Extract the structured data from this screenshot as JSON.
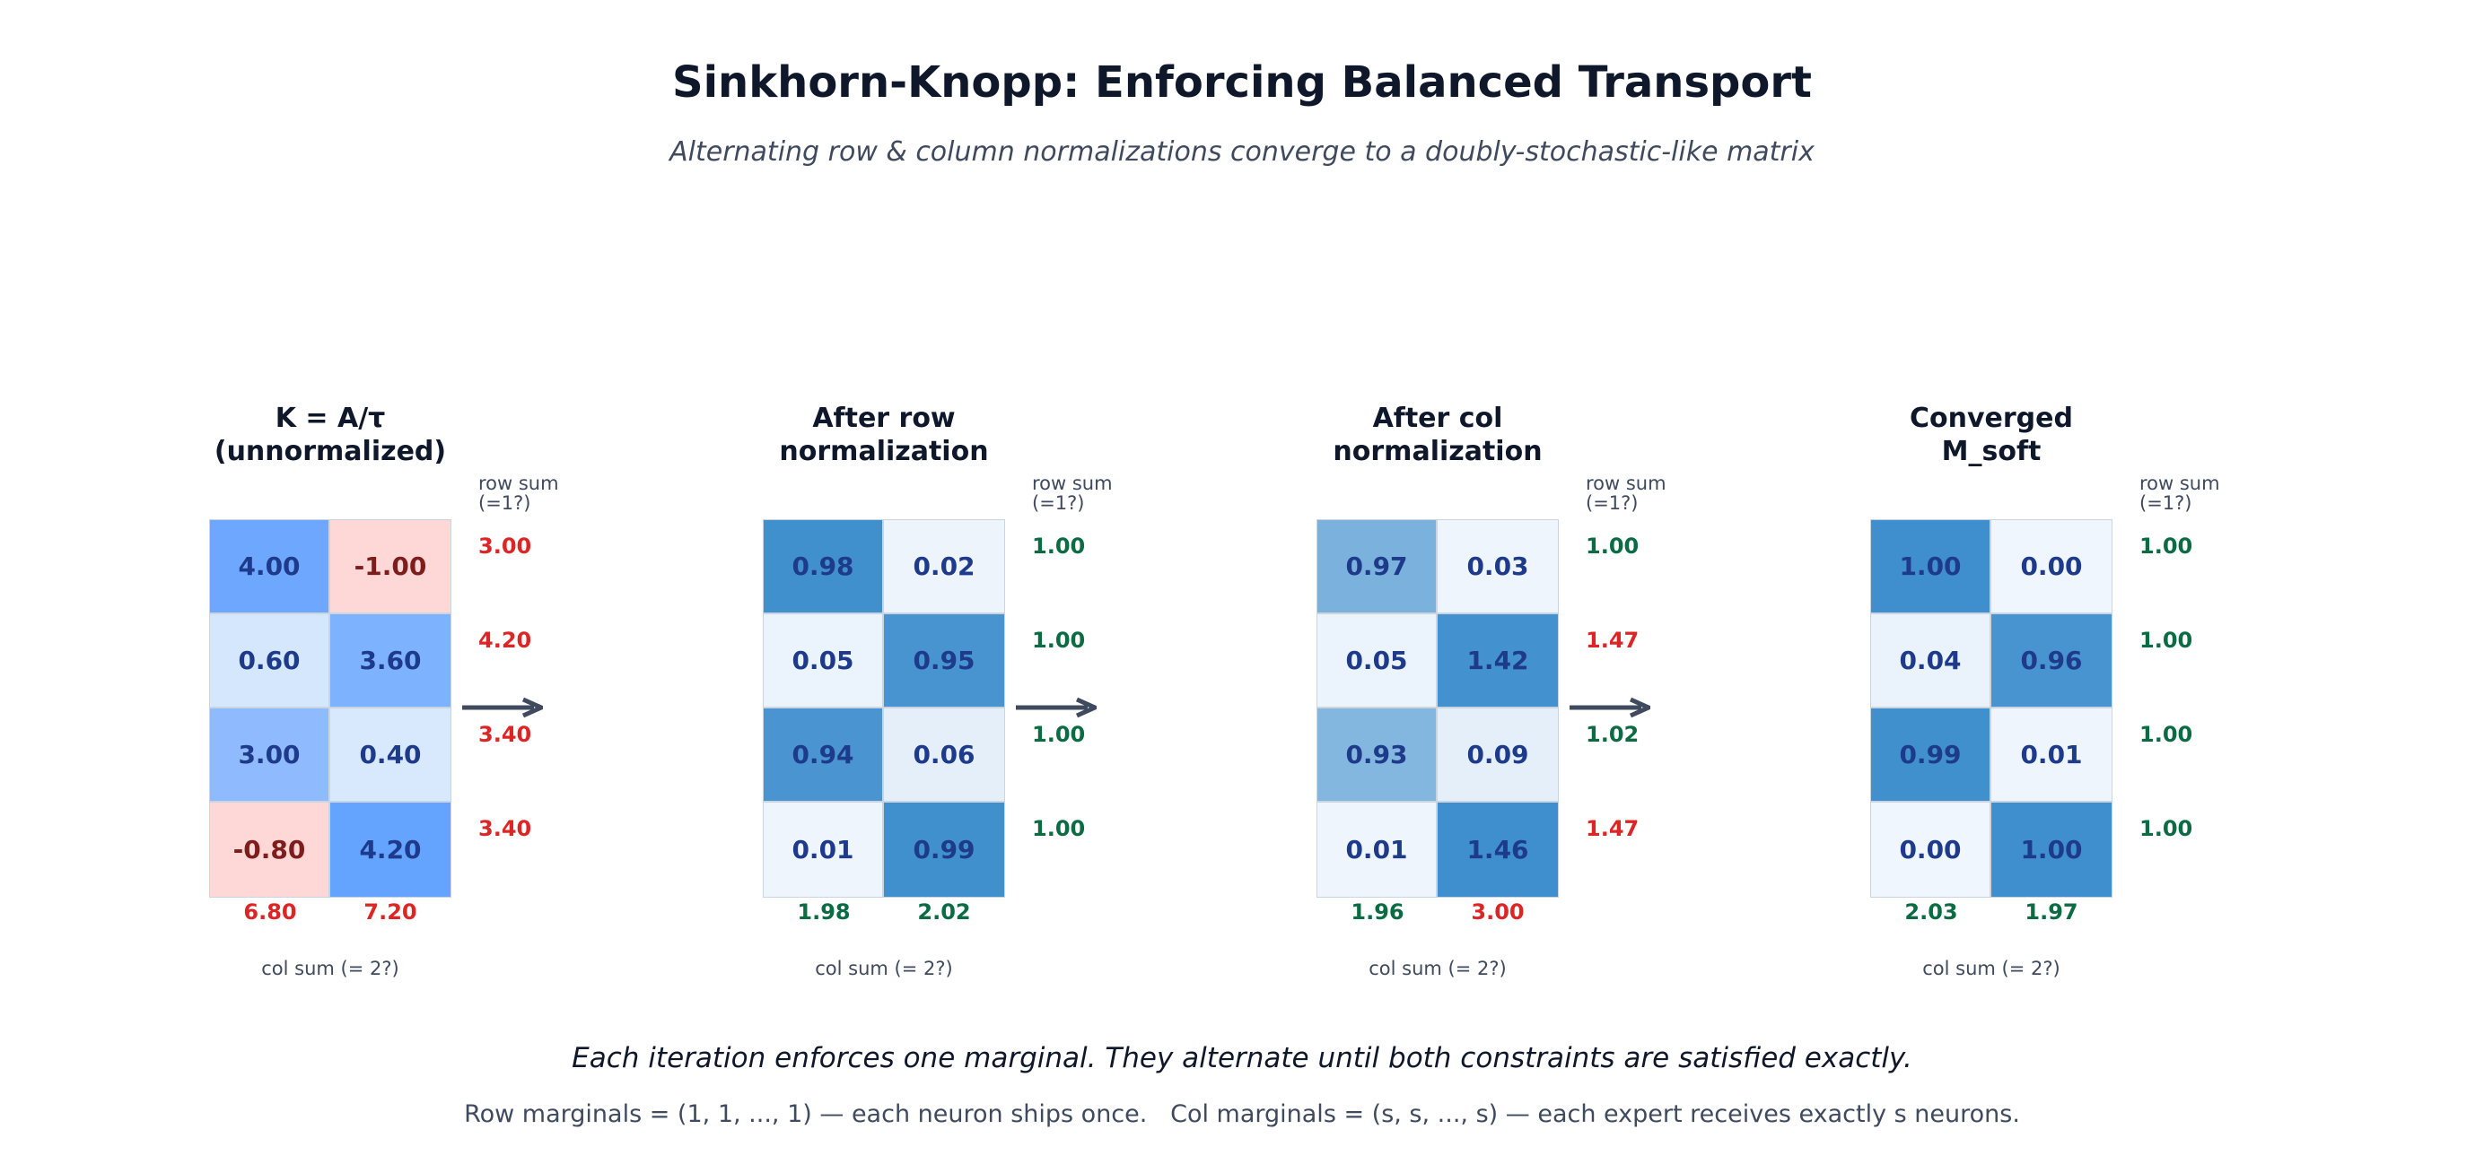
{
  "title": "Sinkhorn-Knopp: Enforcing Balanced Transport",
  "subtitle": "Alternating row & column normalizations converge to a doubly-stochastic-like matrix",
  "row_sum_label": "row sum\n(=1?)",
  "col_sum_label": "col sum (= 2?)",
  "colors": {
    "ok": "#0b6b43",
    "bad": "#dc2626",
    "text_pos": "#1e3a8a",
    "text_neg": "#7f1d1d",
    "arrow": "#3f4a5e"
  },
  "panels": [
    {
      "title": "K = A/τ\n(unnormalized)",
      "cells": [
        [
          "4.00",
          "-1.00"
        ],
        [
          "0.60",
          "3.60"
        ],
        [
          "3.00",
          "0.40"
        ],
        [
          "-0.80",
          "4.20"
        ]
      ],
      "fills": [
        [
          "#6ea8fe",
          "#fed7d7"
        ],
        [
          "#d5e7fd",
          "#7db2fe"
        ],
        [
          "#8fbbfe",
          "#d9e9fd"
        ],
        [
          "#fed7d7",
          "#64a3fe"
        ]
      ],
      "row_sums": [
        "3.00",
        "4.20",
        "3.40",
        "3.40"
      ],
      "row_ok": [
        false,
        false,
        false,
        false
      ],
      "col_sums": [
        "6.80",
        "7.20"
      ],
      "col_ok": [
        false,
        false
      ]
    },
    {
      "title": "After row\nnormalization",
      "cells": [
        [
          "0.98",
          "0.02"
        ],
        [
          "0.05",
          "0.95"
        ],
        [
          "0.94",
          "0.06"
        ],
        [
          "0.01",
          "0.99"
        ]
      ],
      "fills": [
        [
          "#4190ce",
          "#edf4fc"
        ],
        [
          "#ebf3fc",
          "#4894d0"
        ],
        [
          "#4994d1",
          "#e5effa"
        ],
        [
          "#eff5fd",
          "#4190ce"
        ]
      ],
      "row_sums": [
        "1.00",
        "1.00",
        "1.00",
        "1.00"
      ],
      "row_ok": [
        true,
        true,
        true,
        true
      ],
      "col_sums": [
        "1.98",
        "2.02"
      ],
      "col_ok": [
        true,
        true
      ]
    },
    {
      "title": "After col\nnormalization",
      "cells": [
        [
          "0.97",
          "0.03"
        ],
        [
          "0.05",
          "1.42"
        ],
        [
          "0.93",
          "0.09"
        ],
        [
          "0.01",
          "1.46"
        ]
      ],
      "fills": [
        [
          "#7bb2dd",
          "#eff5fd"
        ],
        [
          "#ebf3fc",
          "#4491cf"
        ],
        [
          "#83b7df",
          "#e5effa"
        ],
        [
          "#eff5fd",
          "#3f8ece"
        ]
      ],
      "row_sums": [
        "1.00",
        "1.47",
        "1.02",
        "1.47"
      ],
      "row_ok": [
        true,
        false,
        true,
        false
      ],
      "col_sums": [
        "1.96",
        "3.00"
      ],
      "col_ok": [
        true,
        false
      ]
    },
    {
      "title": "Converged\nM_soft",
      "cells": [
        [
          "1.00",
          "0.00"
        ],
        [
          "0.04",
          "0.96"
        ],
        [
          "0.99",
          "0.01"
        ],
        [
          "0.00",
          "1.00"
        ]
      ],
      "fills": [
        [
          "#3f8ece",
          "#f0f6fd"
        ],
        [
          "#eaf2fb",
          "#4894d0"
        ],
        [
          "#4090ce",
          "#eff5fd"
        ],
        [
          "#f0f6fd",
          "#3f8ece"
        ]
      ],
      "row_sums": [
        "1.00",
        "1.00",
        "1.00",
        "1.00"
      ],
      "row_ok": [
        true,
        true,
        true,
        true
      ],
      "col_sums": [
        "2.03",
        "1.97"
      ],
      "col_ok": [
        true,
        true
      ]
    }
  ],
  "footer": {
    "line1": "Each iteration enforces one marginal. They alternate until both constraints are satisfied exactly.",
    "line2": "Row marginals = (1, 1, ..., 1) — each neuron ships once.   Col marginals = (s, s, ..., s) — each expert receives exactly s neurons."
  }
}
